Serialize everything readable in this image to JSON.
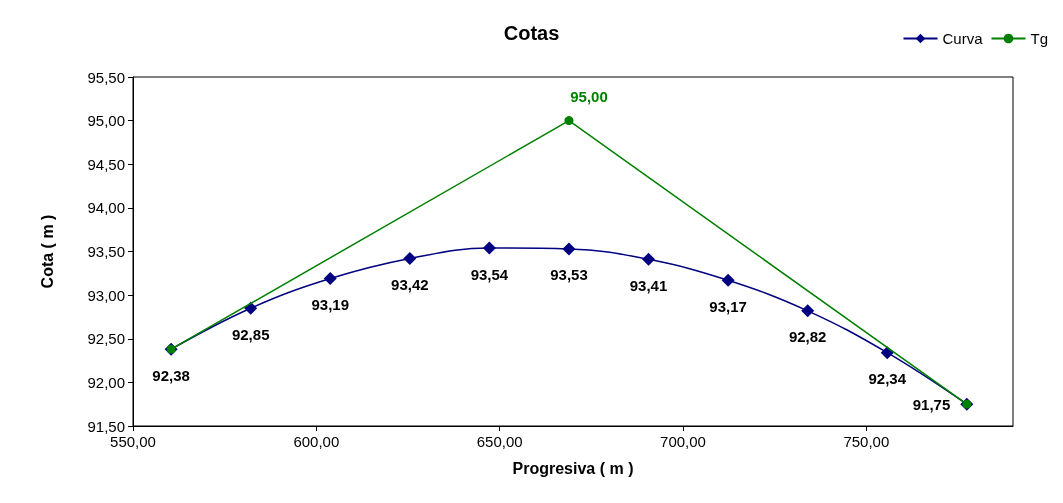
{
  "chart_data": {
    "type": "line",
    "title": "Cotas",
    "xlabel": "Progresiva ( m )",
    "ylabel": "Cota ( m )",
    "xlim": [
      550,
      790
    ],
    "xticks": [
      {
        "value": 550,
        "label": "550,00"
      },
      {
        "value": 600,
        "label": "600,00"
      },
      {
        "value": 650,
        "label": "650,00"
      },
      {
        "value": 700,
        "label": "700,00"
      },
      {
        "value": 750,
        "label": "750,00"
      }
    ],
    "ylim": [
      91.5,
      95.5
    ],
    "yticks": [
      {
        "value": 91.5,
        "label": "91,50"
      },
      {
        "value": 92,
        "label": "92,00"
      },
      {
        "value": 92.5,
        "label": "92,50"
      },
      {
        "value": 93,
        "label": "93,00"
      },
      {
        "value": 93.5,
        "label": "93,50"
      },
      {
        "value": 94,
        "label": "94,00"
      },
      {
        "value": 94.5,
        "label": "94,50"
      },
      {
        "value": 95,
        "label": "95,00"
      },
      {
        "value": 95.5,
        "label": "95,50"
      }
    ],
    "grid": false,
    "legend": "top right",
    "line_style": "solid",
    "series": [
      {
        "name": "Curva",
        "color": "#000080",
        "marker": "diamond",
        "x": [
          560.4,
          582.1,
          603.8,
          625.5,
          647.2,
          668.9,
          690.6,
          712.3,
          734.0,
          755.7,
          777.4
        ],
        "values": [
          92.38,
          92.85,
          93.19,
          93.42,
          93.54,
          93.53,
          93.41,
          93.17,
          92.82,
          92.34,
          91.75
        ],
        "value_labels": [
          "92,38",
          "92,85",
          "93,19",
          "93,42",
          "93,54",
          "93,53",
          "93,41",
          "93,17",
          "92,82",
          "92,34",
          "91,75"
        ]
      },
      {
        "name": "Tg",
        "color": "#008000",
        "marker": "circle",
        "x": [
          560.4,
          668.9,
          777.4
        ],
        "values": [
          92.38,
          95.0,
          91.75
        ],
        "value_labels": [
          null,
          "95,00",
          null
        ]
      }
    ]
  }
}
